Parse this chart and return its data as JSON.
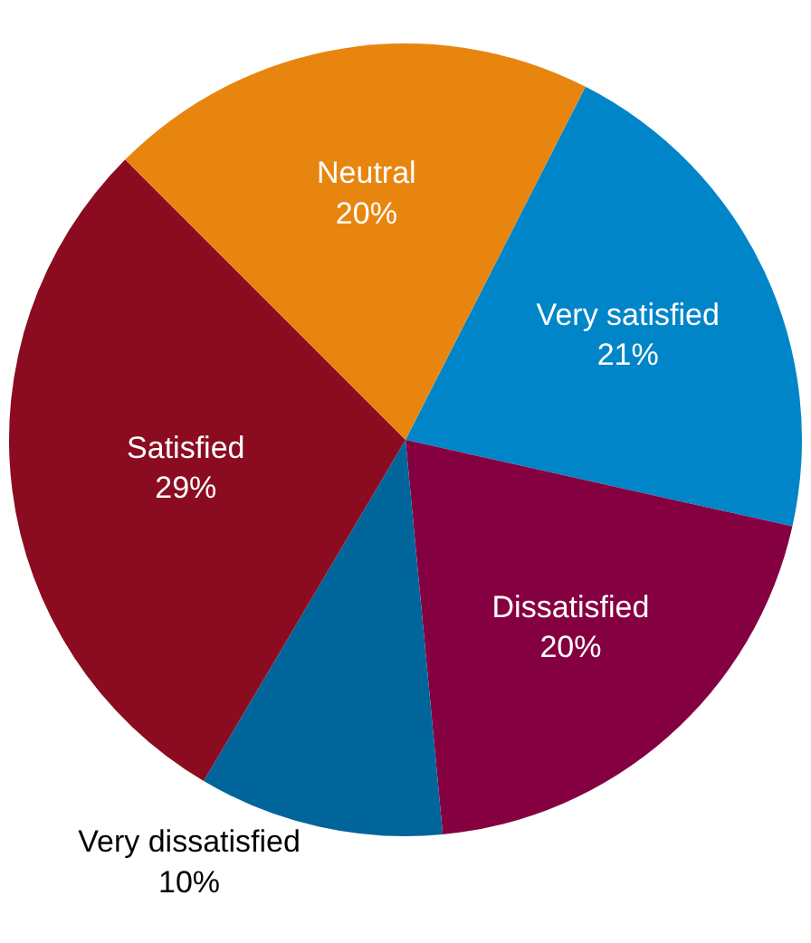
{
  "chart_data": {
    "type": "pie",
    "categories": [
      "Very satisfied",
      "Dissatisfied",
      "Very dissatisfied",
      "Satisfied",
      "Neutral"
    ],
    "values": [
      21,
      20,
      10,
      29,
      20
    ],
    "value_labels": [
      "21%",
      "20%",
      "10%",
      "29%",
      "20%"
    ],
    "colors": [
      "#0085c8",
      "#850040",
      "#00659a",
      "#8b0c20",
      "#e8850f"
    ],
    "legend": false
  }
}
